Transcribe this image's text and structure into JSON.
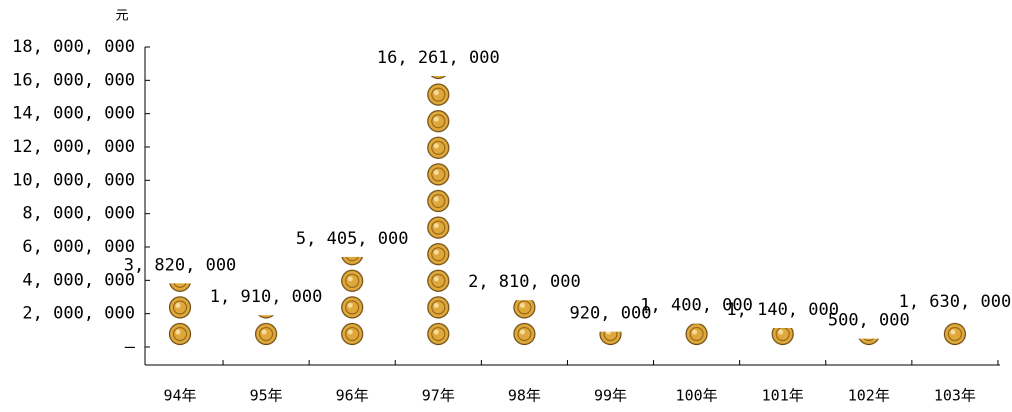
{
  "chart_data": {
    "type": "bar",
    "y_unit": "元",
    "categories": [
      "94年",
      "95年",
      "96年",
      "97年",
      "98年",
      "99年",
      "100年",
      "101年",
      "102年",
      "103年"
    ],
    "values": [
      3820000,
      1910000,
      5405000,
      16261000,
      2810000,
      920000,
      1400000,
      1140000,
      500000,
      1630000
    ],
    "value_labels": [
      "3, 820, 000",
      "1, 910, 000",
      "5, 405, 000",
      "16, 261, 000",
      "2, 810, 000",
      "920, 000",
      "1, 400, 000",
      "1, 140, 000",
      "500, 000",
      "1, 630, 000"
    ],
    "color": "#e0a83a",
    "ylim": [
      0,
      18000000
    ],
    "yticks": [
      {
        "value": 0,
        "label": "—"
      },
      {
        "value": 2000000,
        "label": "2, 000, 000"
      },
      {
        "value": 4000000,
        "label": "4, 000, 000"
      },
      {
        "value": 6000000,
        "label": "6, 000, 000"
      },
      {
        "value": 8000000,
        "label": "8, 000, 000"
      },
      {
        "value": 10000000,
        "label": "10, 000, 000"
      },
      {
        "value": 12000000,
        "label": "12, 000, 000"
      },
      {
        "value": 14000000,
        "label": "14, 000, 000"
      },
      {
        "value": 16000000,
        "label": "16, 000, 000"
      },
      {
        "value": 18000000,
        "label": "18, 000, 000"
      }
    ],
    "grid": false
  }
}
